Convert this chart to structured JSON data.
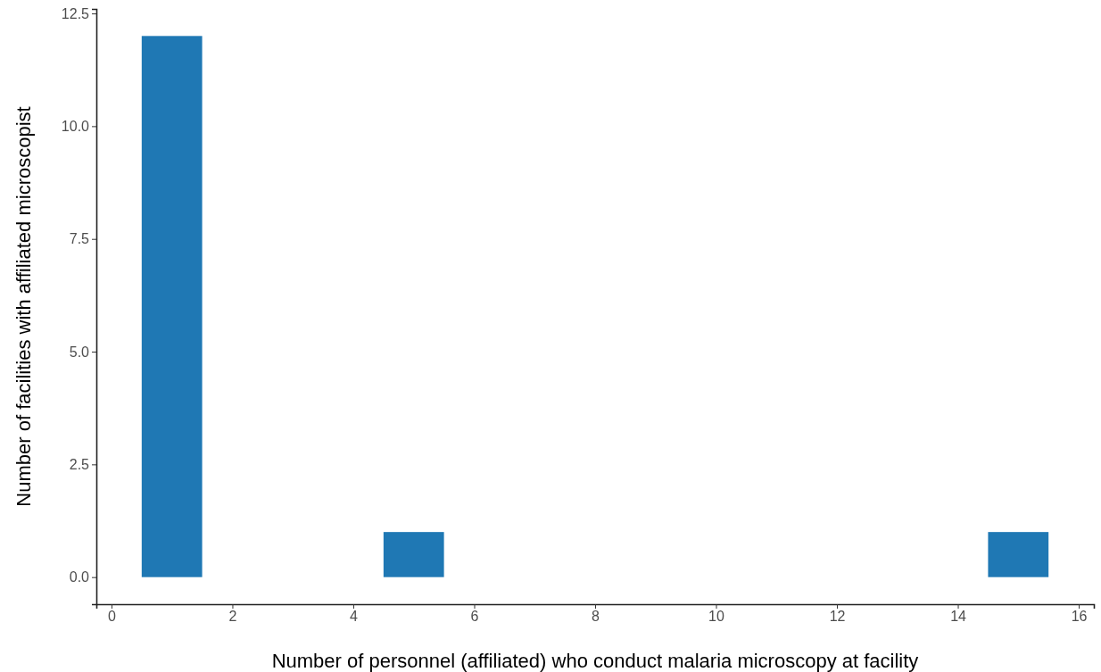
{
  "chart_data": {
    "type": "histogram",
    "xlabel": "Number of personnel (affiliated) who conduct malaria microscopy at facility",
    "ylabel": "Number of facilities with affiliated microscopist",
    "bins": [
      0.5,
      1.5,
      2.5,
      3.5,
      4.5,
      5.5,
      6.5,
      7.5,
      8.5,
      9.5,
      10.5,
      11.5,
      12.5,
      13.5,
      14.5,
      15.5
    ],
    "values": [
      12,
      0,
      0,
      0,
      1,
      0,
      0,
      0,
      0,
      0,
      0,
      0,
      0,
      0,
      1
    ],
    "color": "#1f78b4",
    "xlim": [
      -0.25,
      16.25
    ],
    "xticks": [
      0,
      2,
      4,
      6,
      8,
      10,
      12,
      14,
      16
    ],
    "ylim": [
      -0.6,
      12.6
    ],
    "yticks": [
      {
        "value": 0,
        "label": "0.0"
      },
      {
        "value": 2.5,
        "label": "2.5"
      },
      {
        "value": 5,
        "label": "5.0"
      },
      {
        "value": 7.5,
        "label": "7.5"
      },
      {
        "value": 10,
        "label": "10.0"
      },
      {
        "value": 12.5,
        "label": "12.5"
      }
    ],
    "grid": false
  }
}
